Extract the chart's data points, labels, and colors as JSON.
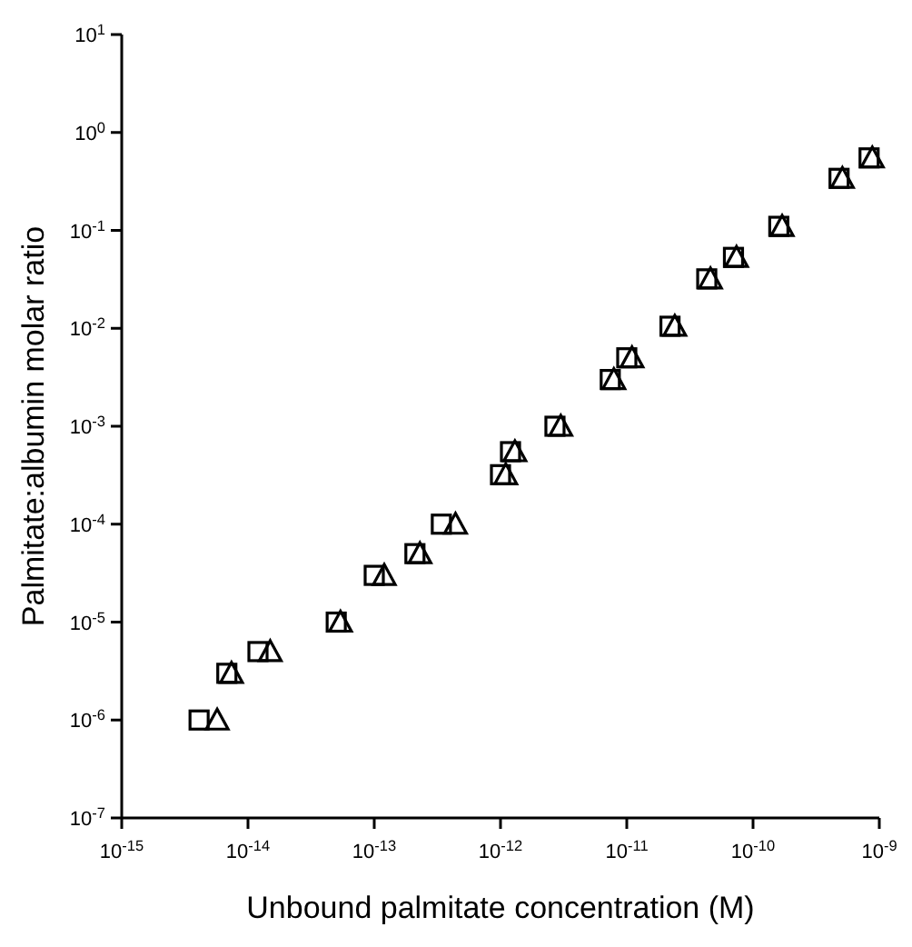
{
  "chart_data": {
    "type": "scatter",
    "xlabel": "Unbound palmitate concentration (M)",
    "ylabel": "Palmitate:albumin molar ratio",
    "log": "xy",
    "grid": false,
    "xlim": [
      1e-15,
      1e-09
    ],
    "ylim": [
      1e-07,
      10
    ],
    "xticks": [
      {
        "value": 1e-15,
        "label": "10$^{-15}$"
      },
      {
        "value": 1e-14,
        "label": "10$^{-14}$"
      },
      {
        "value": 1e-13,
        "label": "10$^{-13}$"
      },
      {
        "value": 1e-12,
        "label": "10$^{-12}$"
      },
      {
        "value": 1e-11,
        "label": "10$^{-11}$"
      },
      {
        "value": 1e-10,
        "label": "10$^{-10}$"
      },
      {
        "value": 1e-09,
        "label": "10$^{-9}$"
      }
    ],
    "yticks": [
      {
        "value": 1e-07,
        "label": "10$^{-7}$"
      },
      {
        "value": 1e-06,
        "label": "10$^{-6}$"
      },
      {
        "value": 1e-05,
        "label": "10$^{-5}$"
      },
      {
        "value": 0.0001,
        "label": "10$^{-4}$"
      },
      {
        "value": 0.001,
        "label": "10$^{-3}$"
      },
      {
        "value": 0.01,
        "label": "10$^{-2}$"
      },
      {
        "value": 0.1,
        "label": "10$^{-1}$"
      },
      {
        "value": 1,
        "label": "10$^{0}$"
      },
      {
        "value": 10,
        "label": "10$^{1}$"
      }
    ],
    "series": [
      {
        "color": "#000000",
        "marker": "square",
        "x": [
          4.1e-15,
          6.8e-15,
          1.2e-14,
          5e-14,
          1e-13,
          2.1e-13,
          3.4e-13,
          1e-12,
          1.2e-12,
          2.7e-12,
          7.4e-12,
          1e-11,
          2.2e-11,
          4.3e-11,
          7e-11,
          1.6e-10,
          4.8e-10,
          8.3e-10
        ],
        "values": [
          1e-06,
          3e-06,
          5e-06,
          1e-05,
          3e-05,
          5e-05,
          0.0001,
          0.00032,
          0.00055,
          0.001,
          0.003,
          0.005,
          0.0105,
          0.032,
          0.053,
          0.11,
          0.34,
          0.55
        ]
      },
      {
        "color": "#000000",
        "marker": "triangle",
        "x": [
          5.7e-15,
          7.4e-15,
          1.5e-14,
          5.4e-14,
          1.2e-13,
          2.3e-13,
          4.4e-13,
          1.1e-12,
          1.3e-12,
          3e-12,
          7.9e-12,
          1.1e-11,
          2.4e-11,
          4.6e-11,
          7.4e-11,
          1.7e-10,
          5.1e-10,
          8.8e-10
        ],
        "values": [
          1e-06,
          3e-06,
          5e-06,
          1e-05,
          3e-05,
          5e-05,
          0.0001,
          0.00032,
          0.00055,
          0.001,
          0.003,
          0.005,
          0.0105,
          0.032,
          0.053,
          0.11,
          0.34,
          0.55
        ]
      }
    ]
  }
}
